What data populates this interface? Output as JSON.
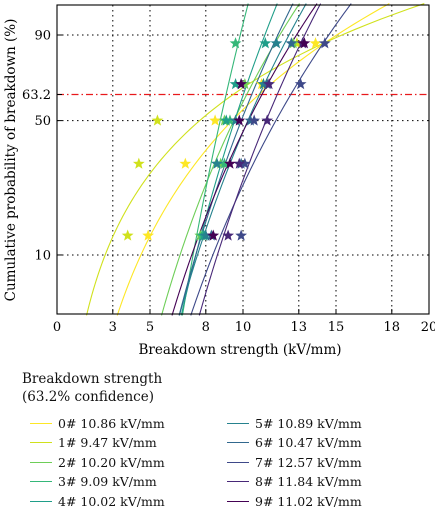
{
  "chart_data": {
    "type": "scatter",
    "title": "",
    "xlabel": "Breakdown strength (kV/mm)",
    "ylabel": "Cumulative probability of breakdown (%)",
    "xlim": [
      0,
      20
    ],
    "x_ticks": [
      0,
      3,
      5,
      8,
      10,
      13,
      15,
      18,
      20
    ],
    "x_tick_labels": [
      "0",
      "3",
      "5",
      "8",
      "10",
      "13",
      "15",
      "18",
      "20"
    ],
    "y_scale": "weibull",
    "ylim_percent": [
      4.5,
      97
    ],
    "y_ticks": [
      10,
      50,
      63.2,
      90
    ],
    "y_tick_labels": [
      "10",
      "50",
      "63.2",
      "90"
    ],
    "grid": "dotted",
    "reference_line": {
      "y": 63.2,
      "style": "dash-dot",
      "color": "#e8191c"
    },
    "legend": {
      "title": "Breakdown strength",
      "subtitle": "(63.2% confidence)",
      "position": "below"
    },
    "y_percent_levels": [
      12.9,
      31.5,
      50.0,
      68.5,
      87.1
    ],
    "series": [
      {
        "name": "0# 10.86 kV/mm",
        "color": "#fde725",
        "scale": 10.86,
        "points_x": [
          4.9,
          6.9,
          8.5,
          11.0,
          13.9
        ]
      },
      {
        "name": "1# 9.47 kV/mm",
        "color": "#d0e11c",
        "scale": 9.47,
        "points_x": [
          3.8,
          4.4,
          5.4,
          11.1,
          12.9
        ]
      },
      {
        "name": "2# 10.20 kV/mm",
        "color": "#6ece58",
        "scale": 10.2,
        "points_x": [
          7.7,
          8.8,
          9.0,
          10.1,
          12.7
        ]
      },
      {
        "name": "3# 9.09 kV/mm",
        "color": "#35b779",
        "scale": 9.09,
        "points_x": [
          7.8,
          9.0,
          9.3,
          9.9,
          9.6
        ]
      },
      {
        "name": "4# 10.02 kV/mm",
        "color": "#1f9e89",
        "scale": 10.02,
        "points_x": [
          7.9,
          8.6,
          9.1,
          9.6,
          11.2
        ]
      },
      {
        "name": "5# 10.89 kV/mm",
        "color": "#26828e",
        "scale": 10.89,
        "points_x": [
          8.0,
          8.6,
          9.6,
          11.1,
          11.8
        ]
      },
      {
        "name": "6# 10.47 kV/mm",
        "color": "#31688e",
        "scale": 10.47,
        "points_x": [
          8.3,
          9.9,
          10.4,
          11.3,
          12.6
        ]
      },
      {
        "name": "7# 12.57 kV/mm",
        "color": "#3e4989",
        "scale": 12.57,
        "points_x": [
          9.9,
          10.1,
          10.6,
          13.1,
          14.4
        ]
      },
      {
        "name": "8# 11.84 kV/mm",
        "color": "#482878",
        "scale": 11.84,
        "points_x": [
          9.2,
          9.8,
          11.3,
          11.4,
          13.2
        ]
      },
      {
        "name": "9# 11.02 kV/mm",
        "color": "#440154",
        "scale": 11.02,
        "points_x": [
          8.4,
          9.3,
          9.8,
          9.9,
          13.3
        ]
      }
    ]
  }
}
